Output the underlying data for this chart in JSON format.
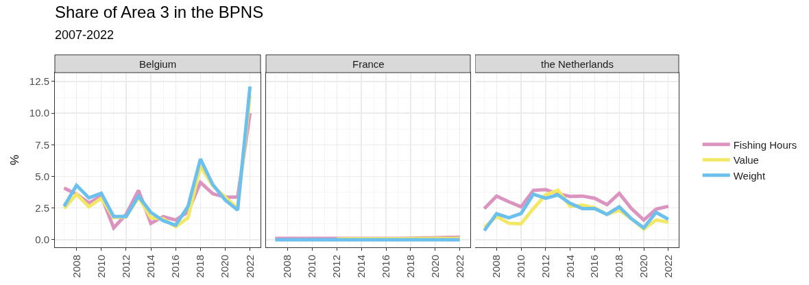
{
  "chart_data": [
    {
      "type": "line",
      "title": "Belgium",
      "ylabel": "%",
      "annotations": [
        "Share of Area 3 in the BPNS",
        "2007-2022"
      ],
      "x": [
        2007,
        2008,
        2009,
        2010,
        2011,
        2012,
        2013,
        2014,
        2015,
        2016,
        2017,
        2018,
        2019,
        2020,
        2021,
        2022
      ],
      "xlim": [
        2006.25,
        2022.85
      ],
      "xticks": [
        2008,
        2010,
        2012,
        2014,
        2016,
        2018,
        2020,
        2022
      ],
      "ylim": [
        -0.6,
        13.2
      ],
      "yticks": [
        {
          "value": 0,
          "label": "0.0"
        },
        2.5,
        {
          "value": 5,
          "label": "5.0"
        },
        7.5,
        {
          "value": 10,
          "label": "10.0"
        },
        12.5
      ],
      "grid": true,
      "legend": false,
      "series": [
        {
          "color": "#db94bf",
          "values": [
            4.08,
            3.6,
            2.9,
            3.45,
            0.94,
            2.0,
            3.9,
            1.3,
            1.83,
            1.56,
            2.2,
            4.53,
            3.63,
            3.36,
            3.36,
            10.0
          ]
        },
        {
          "color": "#f3e766",
          "values": [
            2.46,
            3.6,
            2.6,
            3.27,
            1.74,
            1.8,
            3.36,
            1.74,
            1.65,
            1.03,
            1.74,
            5.8,
            4.26,
            3.36,
            2.46,
            11.4
          ]
        },
        {
          "color": "#6cc0ee",
          "values": [
            2.64,
            4.3,
            3.3,
            3.67,
            1.83,
            1.83,
            3.45,
            2.16,
            1.5,
            1.15,
            2.64,
            6.37,
            4.35,
            3.13,
            2.34,
            12.1
          ]
        }
      ]
    },
    {
      "type": "line",
      "title": "France",
      "x": [
        2007,
        2008,
        2009,
        2010,
        2011,
        2012,
        2013,
        2014,
        2015,
        2016,
        2017,
        2018,
        2019,
        2020,
        2021,
        2022
      ],
      "xlim": [
        2006.25,
        2022.85
      ],
      "xticks": [
        2008,
        2010,
        2012,
        2014,
        2016,
        2018,
        2020,
        2022
      ],
      "ylim": [
        -0.6,
        13.2
      ],
      "yticks": [
        0,
        2.5,
        5,
        7.5,
        10,
        12.5
      ],
      "grid": true,
      "legend": false,
      "tick_labels": "x",
      "series": [
        {
          "color": "#db94bf",
          "values": [
            0.1,
            0.1,
            0.1,
            0.1,
            0.1,
            0.1,
            0.1,
            0.1,
            0.1,
            0.1,
            0.1,
            0.12,
            0.14,
            0.16,
            0.18,
            0.2
          ]
        },
        {
          "color": "#f3e766",
          "values": [
            null,
            null,
            null,
            null,
            null,
            0.06,
            0.07,
            0.08,
            0.08,
            0.08,
            0.08,
            0.09,
            0.09,
            0.1,
            0.1,
            0.1
          ]
        },
        {
          "color": "#6cc0ee",
          "values": [
            0,
            0,
            0,
            0,
            0,
            0,
            0,
            0,
            0,
            0,
            0,
            0,
            0,
            0,
            0,
            0
          ]
        }
      ]
    },
    {
      "type": "line",
      "title": "the Netherlands",
      "x": [
        2007,
        2008,
        2009,
        2010,
        2011,
        2012,
        2013,
        2014,
        2015,
        2016,
        2017,
        2018,
        2019,
        2020,
        2021,
        2022
      ],
      "xlim": [
        2006.25,
        2022.85
      ],
      "xticks": [
        2008,
        2010,
        2012,
        2014,
        2016,
        2018,
        2020,
        2022
      ],
      "ylim": [
        -0.6,
        13.2
      ],
      "yticks": [
        0,
        2.5,
        5,
        7.5,
        10,
        12.5
      ],
      "grid": true,
      "legend": "right",
      "tick_labels": "x",
      "series": [
        {
          "name": "Fishing Hours",
          "color": "#db94bf",
          "values": [
            2.46,
            3.45,
            3.0,
            2.6,
            3.9,
            3.96,
            3.63,
            3.42,
            3.45,
            3.27,
            2.77,
            3.67,
            2.46,
            1.56,
            2.41,
            2.64
          ]
        },
        {
          "name": "Value",
          "color": "#f3e766",
          "values": [
            0.97,
            1.83,
            1.3,
            1.26,
            2.46,
            3.54,
            3.9,
            2.64,
            2.73,
            2.52,
            2.0,
            2.34,
            1.65,
            0.85,
            1.56,
            1.38
          ]
        },
        {
          "name": "Weight",
          "color": "#6cc0ee",
          "values": [
            0.72,
            2.05,
            1.74,
            2.07,
            3.6,
            3.27,
            3.54,
            2.88,
            2.46,
            2.46,
            2.0,
            2.6,
            1.65,
            0.94,
            2.16,
            1.62
          ]
        }
      ]
    }
  ]
}
